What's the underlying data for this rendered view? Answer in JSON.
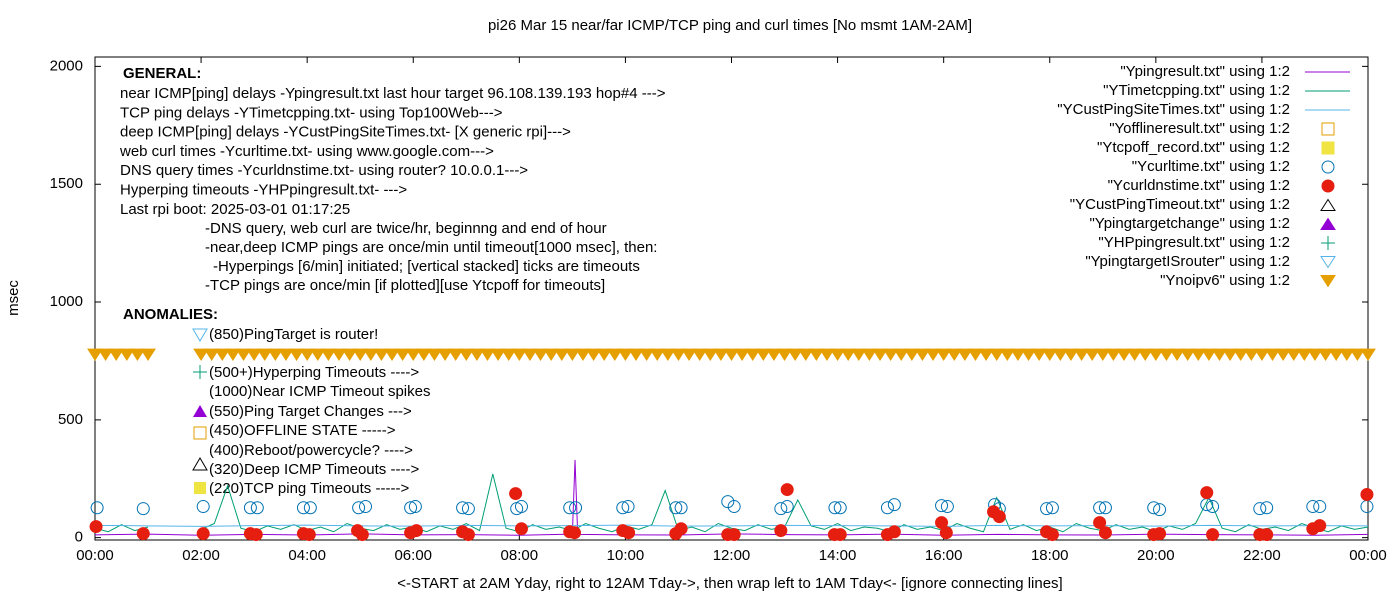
{
  "chart_data": {
    "type": "line",
    "title": "pi26 Mar 15  near/far ICMP/TCP ping and curl times [No msmt 1AM-2AM]",
    "xlabel": "<-START at 2AM Yday, right to 12AM Tday->, then wrap left to 1AM Tday<- [ignore connecting lines]",
    "ylabel": "msec",
    "xlim": [
      0,
      24
    ],
    "ylim": [
      -10,
      2040
    ],
    "xticks": [
      {
        "value": 0,
        "label": "00:00"
      },
      {
        "value": 2,
        "label": "02:00"
      },
      {
        "value": 4,
        "label": "04:00"
      },
      {
        "value": 6,
        "label": "06:00"
      },
      {
        "value": 8,
        "label": "08:00"
      },
      {
        "value": 10,
        "label": "10:00"
      },
      {
        "value": 12,
        "label": "12:00"
      },
      {
        "value": 14,
        "label": "14:00"
      },
      {
        "value": 16,
        "label": "16:00"
      },
      {
        "value": 18,
        "label": "18:00"
      },
      {
        "value": 20,
        "label": "20:00"
      },
      {
        "value": 22,
        "label": "22:00"
      },
      {
        "value": 24,
        "label": "00:00"
      }
    ],
    "yticks": [
      0,
      500,
      1000,
      1500,
      2000
    ],
    "grid": false,
    "legend": "top-right",
    "annotations": {
      "general_heading": "GENERAL:",
      "general_lines": [
        "near ICMP[ping] delays -Ypingresult.txt last hour target 96.108.139.193 hop#4 --->",
        "TCP ping delays -YTimetcpping.txt- using Top100Web--->",
        "deep ICMP[ping] delays -YCustPingSiteTimes.txt- [X generic rpi]--->",
        "web curl times -Ycurltime.txt- using www.google.com--->",
        "DNS query times -Ycurldnstime.txt- using router? 10.0.0.1--->",
        "Hyperping timeouts -YHPpingresult.txt- --->",
        "Last rpi boot: 2025-03-01 01:17:25"
      ],
      "notes": [
        "-DNS query, web curl are twice/hr, beginnng and end of hour",
        "-near,deep ICMP pings are once/min until timeout[1000 msec], then:",
        "-Hyperpings [6/min] initiated; [vertical stacked] ticks are timeouts",
        "-TCP pings are once/min [if plotted][use Ytcpoff for timeouts]"
      ],
      "anomalies_heading": "ANOMALIES:",
      "anomaly_lines": [
        "(850)PingTarget is router!",
        "(500+)Hyperping Timeouts ---->",
        "(1000)Near ICMP Timeout spikes",
        "(550)Ping Target Changes --->",
        "(450)OFFLINE STATE ----->",
        "(400)Reboot/powercycle? ---->",
        "(320)Deep ICMP Timeouts ---->",
        "(220)TCP ping Timeouts ----->"
      ]
    },
    "series": [
      {
        "name": "\"Ypingresult.txt\" using 1:2",
        "color": "#9400d3",
        "marker": "line",
        "x": [
          0,
          1,
          2,
          3,
          4,
          5,
          6,
          7,
          8,
          9,
          9.05,
          9.1,
          10,
          11,
          12,
          13,
          14,
          15,
          16,
          17,
          18,
          19,
          20,
          21,
          22,
          23,
          24
        ],
        "values": [
          12,
          15,
          10,
          14,
          11,
          16,
          12,
          13,
          10,
          15,
          330,
          14,
          12,
          11,
          16,
          13,
          12,
          15,
          10,
          14,
          12,
          11,
          15,
          13,
          12,
          10,
          14
        ]
      },
      {
        "name": "\"YTimetcpping.txt\" using 1:2",
        "color": "#009e73",
        "marker": "line",
        "x": [
          0,
          0.25,
          0.5,
          0.75,
          1,
          1.25,
          1.5,
          1.75,
          2,
          2.25,
          2.5,
          2.75,
          3,
          3.25,
          3.5,
          3.75,
          4,
          4.25,
          4.5,
          4.75,
          5,
          5.25,
          5.5,
          5.75,
          6,
          6.25,
          6.5,
          6.75,
          7,
          7.25,
          7.5,
          7.75,
          8,
          8.25,
          8.5,
          8.75,
          9,
          9.25,
          9.5,
          9.75,
          10,
          10.25,
          10.5,
          10.75,
          11,
          11.25,
          11.5,
          11.75,
          12,
          12.25,
          12.5,
          12.75,
          13,
          13.25,
          13.5,
          13.75,
          14,
          14.25,
          14.5,
          14.75,
          15,
          15.25,
          15.5,
          15.75,
          16,
          16.25,
          16.5,
          16.75,
          17,
          17.25,
          17.5,
          17.75,
          18,
          18.25,
          18.5,
          18.75,
          19,
          19.25,
          19.5,
          19.75,
          20,
          20.25,
          20.5,
          20.75,
          21,
          21.25,
          21.5,
          21.75,
          22,
          22.25,
          22.5,
          22.75,
          23,
          23.25,
          23.5,
          23.75,
          24
        ],
        "values": [
          40,
          25,
          55,
          30,
          45,
          null,
          null,
          null,
          35,
          60,
          220,
          40,
          25,
          50,
          35,
          55,
          30,
          45,
          25,
          60,
          40,
          30,
          55,
          35,
          45,
          25,
          50,
          35,
          60,
          30,
          270,
          40,
          25,
          55,
          35,
          45,
          30,
          60,
          40,
          25,
          50,
          35,
          55,
          200,
          30,
          45,
          25,
          60,
          40,
          30,
          55,
          35,
          45,
          160,
          50,
          35,
          60,
          30,
          45,
          40,
          25,
          55,
          35,
          45,
          30,
          60,
          40,
          25,
          170,
          35,
          55,
          30,
          45,
          25,
          60,
          40,
          30,
          55,
          35,
          45,
          25,
          50,
          35,
          60,
          170,
          40,
          25,
          55,
          35,
          45,
          30,
          60,
          40,
          25,
          50,
          35,
          45
        ]
      },
      {
        "name": "\"YCustPingSiteTimes.txt\" using 1:2",
        "color": "#56b4e9",
        "marker": "line",
        "x": [
          0,
          1,
          2,
          3,
          4,
          5,
          6,
          7,
          8,
          9,
          10,
          11,
          12,
          13,
          14,
          15,
          16,
          17,
          18,
          19,
          20,
          21,
          22,
          23,
          24
        ],
        "values": [
          52,
          50,
          48,
          51,
          53,
          50,
          49,
          52,
          50,
          51,
          53,
          49,
          50,
          52,
          51,
          50,
          48,
          52,
          50,
          51,
          49,
          52,
          50,
          51,
          50
        ]
      },
      {
        "name": "\"Yofflineresult.txt\" using 1:2",
        "color": "#e69f00",
        "marker": "open-square",
        "x": [],
        "values": []
      },
      {
        "name": "\"Ytcpoff_record.txt\" using 1:2",
        "color": "#f0e442",
        "marker": "filled-square",
        "x": [],
        "values": []
      },
      {
        "name": "\"Ycurltime.txt\" using 1:2",
        "color": "#0072b2",
        "marker": "open-circle",
        "x": [
          0.04,
          0.91,
          2.04,
          2.93,
          3.06,
          3.93,
          4.06,
          4.97,
          5.1,
          5.95,
          6.04,
          6.93,
          7.04,
          7.95,
          8.04,
          8.95,
          9.06,
          9.95,
          10.05,
          10.95,
          11.05,
          11.93,
          12.05,
          12.93,
          13.05,
          13.95,
          14.05,
          14.94,
          15.07,
          15.96,
          16.07,
          16.96,
          17.05,
          17.94,
          18.05,
          18.94,
          19.05,
          19.96,
          20.07,
          20.96,
          21.07,
          21.96,
          22.09,
          22.96,
          23.09,
          23.98
        ],
        "values": [
          127,
          123,
          132,
          127,
          127,
          127,
          127,
          127,
          132,
          127,
          132,
          127,
          123,
          123,
          132,
          127,
          127,
          127,
          132,
          127,
          127,
          153,
          132,
          123,
          132,
          127,
          127,
          127,
          140,
          136,
          132,
          140,
          123,
          123,
          127,
          127,
          127,
          127,
          119,
          140,
          132,
          123,
          127,
          132,
          132,
          132
        ]
      },
      {
        "name": "\"Ycurldnstime.txt\" using 1:2",
        "color": "#e51e10",
        "marker": "filled-circle",
        "x": [
          0.02,
          0.91,
          2.04,
          2.93,
          3.04,
          3.93,
          4.04,
          4.95,
          5.04,
          5.95,
          6.06,
          6.93,
          7.04,
          7.93,
          8.04,
          8.95,
          9.04,
          9.95,
          10.06,
          10.95,
          11.05,
          11.93,
          12.05,
          12.93,
          13.05,
          13.94,
          14.05,
          14.94,
          15.07,
          15.96,
          16.05,
          16.94,
          17.05,
          17.94,
          18.05,
          18.94,
          19.05,
          19.96,
          20.07,
          20.96,
          21.07,
          21.96,
          22.09,
          22.96,
          23.09,
          23.98
        ],
        "values": [
          47,
          17,
          17,
          17,
          13,
          17,
          13,
          30,
          13,
          21,
          30,
          25,
          13,
          187,
          38,
          25,
          21,
          30,
          21,
          17,
          38,
          13,
          13,
          30,
          204,
          13,
          13,
          13,
          25,
          64,
          21,
          110,
          89,
          25,
          13,
          64,
          21,
          13,
          17,
          191,
          13,
          13,
          13,
          38,
          51,
          183
        ]
      },
      {
        "name": "\"YCustPingTimeout.txt\" using 1:2",
        "color": "#000000",
        "marker": "open-triangle",
        "x": [],
        "values": []
      },
      {
        "name": "\"Ypingtargetchange\" using 1:2",
        "color": "#9400d3",
        "marker": "filled-triangle",
        "x": [],
        "values": []
      },
      {
        "name": "\"YHPpingresult.txt\" using 1:2",
        "color": "#009e73",
        "marker": "plus",
        "x": [],
        "values": []
      },
      {
        "name": "\"YpingtargetISrouter\" using 1:2",
        "color": "#56b4e9",
        "marker": "open-triangle-down",
        "x": [],
        "values": []
      },
      {
        "name": "\"Ynoipv6\" using 1:2",
        "color": "#e69f00",
        "marker": "filled-triangle-down",
        "x": [
          0,
          0.2,
          0.4,
          0.6,
          0.8,
          1,
          2,
          2.2,
          2.4,
          2.6,
          2.8,
          3,
          3.2,
          3.4,
          3.6,
          3.8,
          4,
          4.2,
          4.4,
          4.6,
          4.8,
          5,
          5.2,
          5.4,
          5.6,
          5.8,
          6,
          6.2,
          6.4,
          6.6,
          6.8,
          7,
          7.2,
          7.4,
          7.6,
          7.8,
          8,
          8.2,
          8.4,
          8.6,
          8.8,
          9,
          9.2,
          9.4,
          9.6,
          9.8,
          10,
          10.2,
          10.4,
          10.6,
          10.8,
          11,
          11.2,
          11.4,
          11.6,
          11.8,
          12,
          12.2,
          12.4,
          12.6,
          12.8,
          13,
          13.2,
          13.4,
          13.6,
          13.8,
          14,
          14.2,
          14.4,
          14.6,
          14.8,
          15,
          15.2,
          15.4,
          15.6,
          15.8,
          16,
          16.2,
          16.4,
          16.6,
          16.8,
          17,
          17.2,
          17.4,
          17.6,
          17.8,
          18,
          18.2,
          18.4,
          18.6,
          18.8,
          19,
          19.2,
          19.4,
          19.6,
          19.8,
          20,
          20.2,
          20.4,
          20.6,
          20.8,
          21,
          21.2,
          21.4,
          21.6,
          21.8,
          22,
          22.2,
          22.4,
          22.6,
          22.8,
          23,
          23.2,
          23.4,
          23.6,
          23.8,
          24
        ],
        "values": [
          777,
          777,
          777,
          777,
          777,
          777,
          777,
          777,
          777,
          777,
          777,
          777,
          777,
          777,
          777,
          777,
          777,
          777,
          777,
          777,
          777,
          777,
          777,
          777,
          777,
          777,
          777,
          777,
          777,
          777,
          777,
          777,
          777,
          777,
          777,
          777,
          777,
          777,
          777,
          777,
          777,
          777,
          777,
          777,
          777,
          777,
          777,
          777,
          777,
          777,
          777,
          777,
          777,
          777,
          777,
          777,
          777,
          777,
          777,
          777,
          777,
          777,
          777,
          777,
          777,
          777,
          777,
          777,
          777,
          777,
          777,
          777,
          777,
          777,
          777,
          777,
          777,
          777,
          777,
          777,
          777,
          777,
          777,
          777,
          777,
          777,
          777,
          777,
          777,
          777,
          777,
          777,
          777,
          777,
          777,
          777,
          777,
          777,
          777,
          777,
          777,
          777,
          777,
          777,
          777,
          777,
          777,
          777,
          777,
          777,
          777,
          777,
          777,
          777,
          777,
          777,
          777
        ]
      }
    ]
  }
}
